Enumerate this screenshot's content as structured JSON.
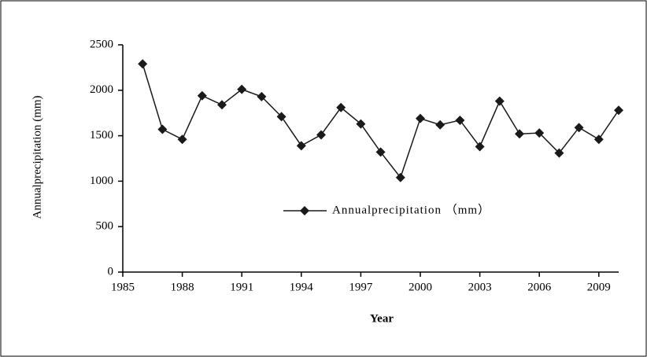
{
  "chart_data": {
    "type": "line",
    "x_label": "Year",
    "y_label": "Annualprecipitation (mm)",
    "x": [
      1986,
      1987,
      1988,
      1989,
      1990,
      1991,
      1992,
      1993,
      1994,
      1995,
      1996,
      1997,
      1998,
      1999,
      2000,
      2001,
      2002,
      2003,
      2004,
      2005,
      2006,
      2007,
      2008,
      2009,
      2010
    ],
    "series": [
      {
        "name": "Annualprecipitation （mm）",
        "color": "#1a1a1a",
        "values": [
          2290,
          1570,
          1460,
          1940,
          1840,
          2010,
          1930,
          1710,
          1390,
          1510,
          1810,
          1630,
          1320,
          1040,
          1690,
          1620,
          1670,
          1380,
          1880,
          1520,
          1530,
          1310,
          1590,
          1460,
          1780
        ]
      }
    ],
    "xlim": [
      1985,
      2010
    ],
    "xticks": [
      1985,
      1988,
      1991,
      1994,
      1997,
      2000,
      2003,
      2006,
      2009
    ],
    "ylim": [
      0,
      2500
    ],
    "yticks": [
      0,
      500,
      1000,
      1500,
      2000,
      2500
    ],
    "legend": "center"
  }
}
